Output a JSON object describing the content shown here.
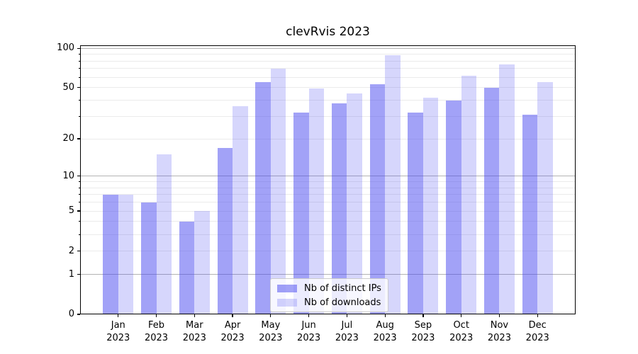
{
  "title": "clevRvis 2023",
  "legend": {
    "items": [
      {
        "label": "Nb of distinct IPs",
        "color": "rgba(70,70,240,0.5)",
        "color_on_white": "#a3a3f7"
      },
      {
        "label": "Nb of downloads",
        "color": "rgba(70,70,240,0.22)",
        "color_on_white": "#dadafb"
      }
    ],
    "position": "lower center"
  },
  "chart_data": {
    "type": "bar",
    "title": "clevRvis 2023",
    "categories": [
      "Jan 2023",
      "Feb 2023",
      "Mar 2023",
      "Apr 2023",
      "May 2023",
      "Jun 2023",
      "Jul 2023",
      "Aug 2023",
      "Sep 2023",
      "Oct 2023",
      "Nov 2023",
      "Dec 2023"
    ],
    "month_labels": [
      "Jan",
      "Feb",
      "Mar",
      "Apr",
      "May",
      "Jun",
      "Jul",
      "Aug",
      "Sep",
      "Oct",
      "Nov",
      "Dec"
    ],
    "year_line": "2023",
    "series": [
      {
        "name": "Nb of distinct IPs",
        "values": [
          7,
          6,
          4,
          17,
          55,
          32,
          38,
          53,
          32,
          40,
          50,
          31
        ]
      },
      {
        "name": "Nb of downloads",
        "values": [
          7,
          15,
          5,
          36,
          70,
          49,
          45,
          88,
          42,
          62,
          75,
          55
        ]
      }
    ],
    "xlabel": "",
    "ylabel": "",
    "yscale": "log1p",
    "ylim": [
      0,
      105
    ],
    "ytick_labels": [
      "100",
      "50",
      "20",
      "10",
      "5",
      "2",
      "1",
      "0"
    ],
    "yticks": [
      100,
      50,
      20,
      10,
      5,
      2,
      1,
      0
    ],
    "minor_grid_values": [
      2,
      3,
      4,
      5,
      6,
      7,
      8,
      9,
      20,
      30,
      40,
      50,
      60,
      70,
      80,
      90
    ],
    "major_grid_values": [
      1,
      10,
      100
    ],
    "grid": true,
    "legend_position": "lower center"
  },
  "colors": {
    "bar_dark": "rgba(70,70,240,0.5)",
    "bar_light": "rgba(70,70,240,0.22)",
    "grid_major": "#b3b3b3",
    "grid_minor": "#ebebeb",
    "spine": "#000000",
    "background": "#ffffff",
    "legend_border": "#cccccc"
  }
}
